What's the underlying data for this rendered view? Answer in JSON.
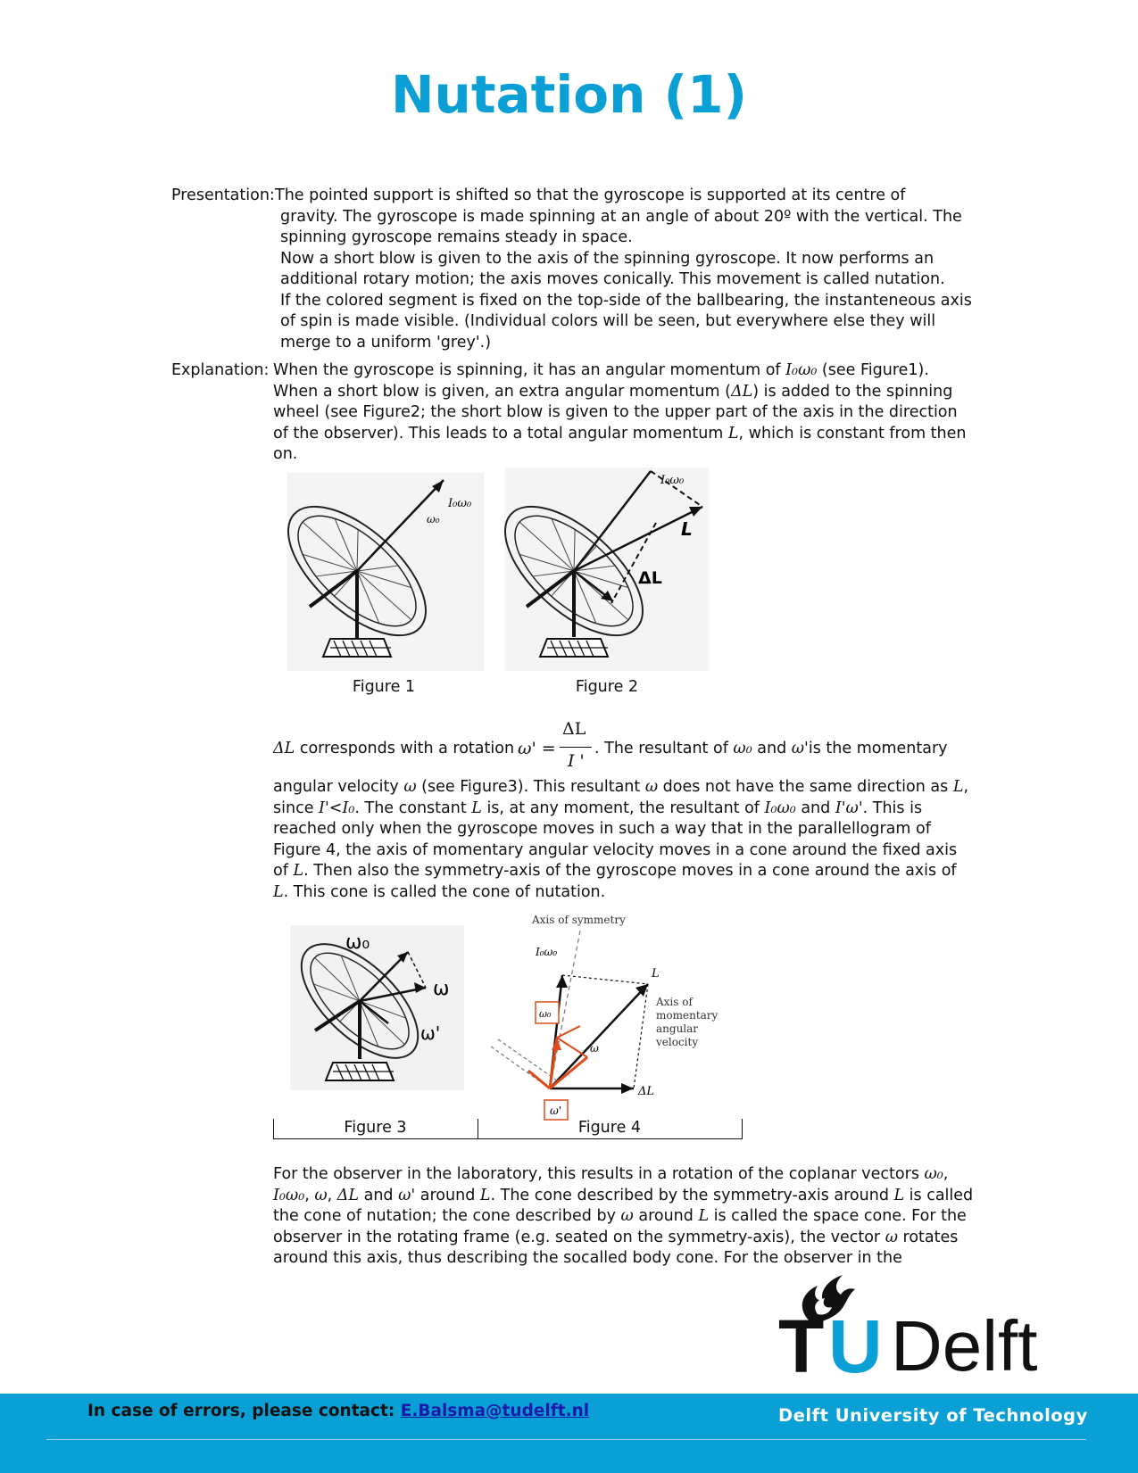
{
  "title": "Nutation (1)",
  "presentation": {
    "label": "Presentation:",
    "lines": [
      "The pointed support is shifted so that the gyroscope is supported at its centre of",
      "gravity. The gyroscope is made spinning at an angle of about 20º with the vertical. The",
      "spinning gyroscope remains steady in space.",
      "Now a short blow is given to the axis of the spinning gyroscope. It now performs an",
      "additional rotary motion; the axis moves conically. This movement is called nutation.",
      "If the colored segment is fixed on the top-side of the ballbearing, the instanteneous axis",
      "of spin is made visible. (Individual colors will be seen, but everywhere else they will",
      "merge to a uniform 'grey'.)"
    ]
  },
  "explanation": {
    "label": "Explanation:",
    "l1a": "When the gyroscope is spinning, it has an angular momentum of ",
    "l1b": " (see Figure1).",
    "l2a": "When a short blow is given, an extra angular momentum (",
    "l2b": ") is added to the spinning",
    "l3": "wheel (see Figure2; the short blow is given to the upper part of the axis in the direction",
    "l4a": "of the observer). This leads to a total angular momentum ",
    "l4b": ", which is constant from then",
    "l5": "on."
  },
  "symbols": {
    "I0w0": "I₀ω₀",
    "dL": "ΔL",
    "L": "L",
    "w0": "ω₀",
    "wp": "ω'",
    "w": "ω",
    "Ip": "I'",
    "I0": "I₀",
    "Ipwp": "I'ω'",
    "frac_num": "ΔL",
    "frac_den": "I '",
    "frac_lhs": "ω' ="
  },
  "rotation_text": {
    "a1": " corresponds with a rotation",
    "a2": ". The resultant of ",
    "a3": " and ",
    "a4": "is the momentary",
    "b1": "angular velocity ",
    "b2": " (see Figure3). This resultant ",
    "b3": " does not have the same direction as ",
    "b4": ",",
    "c1": "since ",
    "c2": "<",
    "c3": ". The constant ",
    "c4": " is, at any moment, the resultant of ",
    "c5": " and ",
    "c6": ". This is",
    "d": "reached only when the gyroscope moves in such a way that in the parallellogram of",
    "e": "Figure 4, the axis of momentary angular velocity moves in a cone around the fixed axis",
    "f1": "of ",
    "f2": ". Then also the symmetry-axis of the gyroscope moves in a cone around the axis of",
    "g2": ". This cone is called the cone of nutation."
  },
  "figures": {
    "fig1": {
      "caption": "Figure 1",
      "labels": {
        "l": "I₀ω₀",
        "w": "ω₀"
      }
    },
    "fig2": {
      "caption": "Figure 2",
      "labels": {
        "l": "I₀ω₀",
        "L": "L",
        "dL": "ΔL"
      }
    },
    "fig3": {
      "caption": "Figure 3",
      "labels": {
        "w0": "ω₀",
        "w": "ω",
        "wp": "ω'"
      }
    },
    "fig4": {
      "caption": "Figure 4",
      "labels": {
        "sym": "Axis of symmetry",
        "l": "I₀ω₀",
        "L": "L",
        "mom1": "Axis of",
        "mom2": "momentary",
        "mom3": "angular",
        "mom4": "velocity",
        "w0": "ω₀",
        "w": "ω",
        "wp": "ω'",
        "dL": "ΔL"
      }
    }
  },
  "observer": {
    "l1a": "For the observer in the laboratory, this results in a rotation of the coplanar vectors ",
    "l1b": ",",
    "l2a": ", ",
    "l2b": ", ",
    "l2c": " and ",
    "l2d": " around ",
    "l2e": ". The cone described by the symmetry-axis around ",
    "l2f": " is called",
    "l3a": "the cone of nutation; the cone described by ",
    "l3b": " around ",
    "l3c": " is called the space cone. For the",
    "l4a": "observer in the rotating frame (e.g. seated on the symmetry-axis), the vector ",
    "l4b": " rotates",
    "l5": "around this axis, thus describing the socalled body cone. For the observer in the"
  },
  "logo": {
    "t": "T",
    "u": "U",
    "delft": "Delft"
  },
  "footer": {
    "contact_label": "In case of errors, please contact: ",
    "contact_email": "E.Balsma@tudelft.nl",
    "university": "Delft University of Technology"
  },
  "colors": {
    "accent": "#0aa0d6",
    "figure4_red": "#e04a1a"
  }
}
